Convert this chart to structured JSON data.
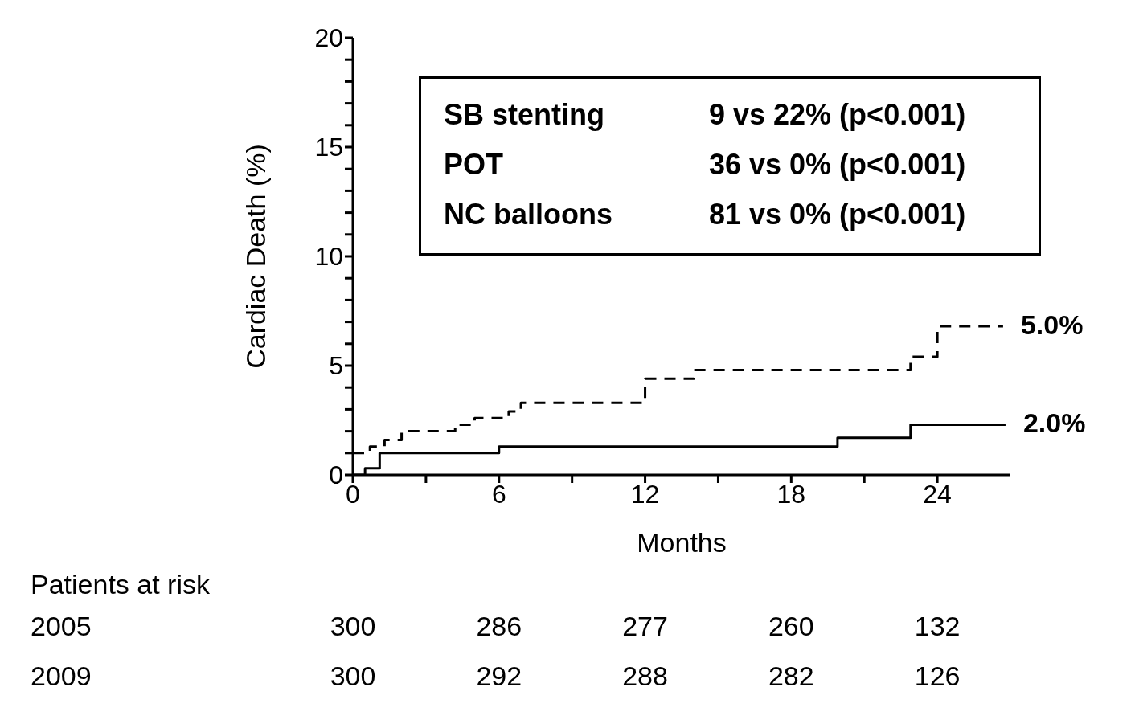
{
  "chart_data": {
    "type": "step",
    "xlabel": "Months",
    "ylabel": "Cardiac Death (%)",
    "xlim": [
      0,
      27
    ],
    "xticks": [
      0,
      {
        "value": 3,
        "label": null
      },
      6,
      {
        "value": 9,
        "label": null
      },
      12,
      {
        "value": 15,
        "label": null
      },
      18,
      {
        "value": 21,
        "label": null
      },
      24
    ],
    "ylim": [
      0,
      20
    ],
    "yticks": [
      0,
      {
        "value": 1,
        "label": null
      },
      {
        "value": 2,
        "label": null
      },
      {
        "value": 3,
        "label": null
      },
      {
        "value": 4,
        "label": null
      },
      5,
      {
        "value": 6,
        "label": null
      },
      {
        "value": 7,
        "label": null
      },
      {
        "value": 8,
        "label": null
      },
      {
        "value": 9,
        "label": null
      },
      10,
      {
        "value": 11,
        "label": null
      },
      {
        "value": 12,
        "label": null
      },
      {
        "value": 13,
        "label": null
      },
      {
        "value": 14,
        "label": null
      },
      15,
      {
        "value": 16,
        "label": null
      },
      {
        "value": 17,
        "label": null
      },
      {
        "value": 18,
        "label": null
      },
      {
        "value": 19,
        "label": null
      },
      20
    ],
    "marker": "none",
    "series": [
      {
        "color": "#000000",
        "line_style": "dashed",
        "x": [
          0,
          0.7,
          1.3,
          2,
          4.2,
          5,
          6.4,
          6.9,
          12,
          14,
          22.9,
          24,
          26.7
        ],
        "values": [
          1.0,
          1.3,
          1.6,
          2.0,
          2.3,
          2.6,
          2.9,
          3.3,
          4.4,
          4.8,
          5.4,
          6.8,
          6.8
        ]
      },
      {
        "color": "#000000",
        "line_style": "solid",
        "x": [
          0,
          0.5,
          1.1,
          6,
          19.9,
          22.9,
          26.8
        ],
        "values": [
          0,
          0.3,
          1.0,
          1.3,
          1.7,
          2.3,
          2.3
        ]
      }
    ],
    "annotations": [
      "SB stenting",
      "9 vs 22% (p<0.001)",
      "POT",
      "36 vs 0% (p<0.001)",
      "NC balloons",
      "81 vs 0% (p<0.001)",
      "Patients at risk",
      "2005",
      "300",
      "286",
      "277",
      "260",
      "132",
      "2009",
      "300",
      "292",
      "288",
      "282",
      "126",
      {
        "text": "5.0%",
        "x": 26.7,
        "y": 6.8
      },
      {
        "text": "2.0%",
        "x": 26.8,
        "y": 2.3
      }
    ]
  }
}
